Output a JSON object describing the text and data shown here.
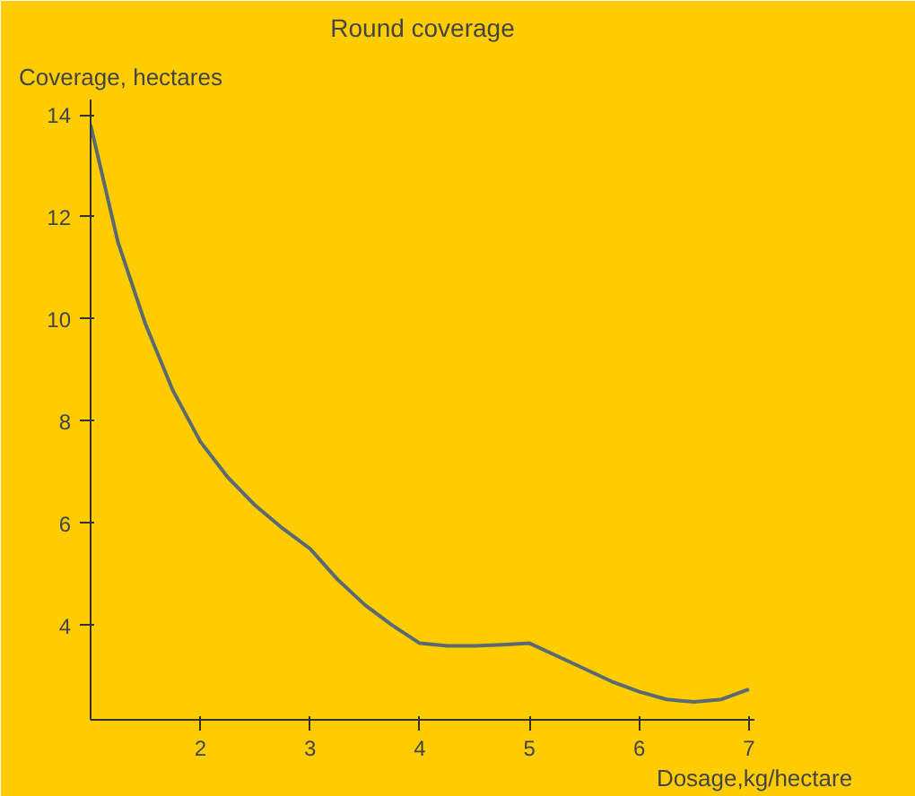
{
  "chart_data": {
    "type": "line",
    "title": "Round coverage",
    "xlabel": "Dosage,kg/hectare",
    "ylabel": "Coverage, hectares",
    "x": [
      1,
      1.25,
      1.5,
      1.75,
      2,
      2.25,
      2.5,
      2.75,
      3,
      3.25,
      3.5,
      3.75,
      4,
      4.25,
      4.5,
      4.75,
      5,
      5.25,
      5.5,
      5.75,
      6,
      6.25,
      6.5,
      6.75,
      7
    ],
    "series": [
      {
        "color": "#5a6a70",
        "values": [
          13.8,
          11.5,
          9.9,
          8.6,
          7.6,
          6.9,
          6.35,
          5.9,
          5.5,
          4.9,
          4.4,
          4.0,
          3.65,
          3.6,
          3.6,
          3.62,
          3.65,
          3.4,
          3.15,
          2.9,
          2.7,
          2.55,
          2.5,
          2.55,
          2.75
        ]
      }
    ],
    "xlim": [
      1,
      7.05
    ],
    "ylim": [
      2.15,
      14.3
    ],
    "xticks": [
      2,
      3,
      4,
      5,
      6,
      7
    ],
    "yticks": [
      4,
      6,
      8,
      10,
      12,
      14
    ],
    "grid": false,
    "marker": "none",
    "line_style": "solid"
  }
}
